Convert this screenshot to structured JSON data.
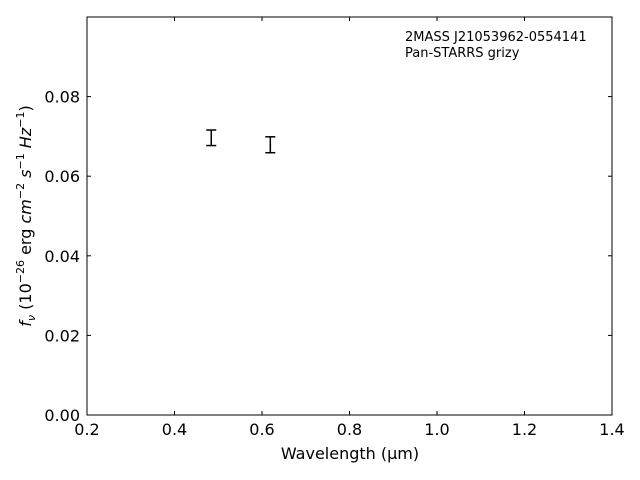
{
  "chart_data": {
    "type": "scatter",
    "annotation_lines": [
      "2MASS J21053962-0554141",
      "Pan-STARRS grizy"
    ],
    "xlabel": "Wavelength (μm)",
    "ylabel_parts": {
      "f": "f",
      "sub": "ν",
      "open": " (10",
      "exp1": "−26",
      "mid": " erg ",
      "cm": "cm",
      "exp2": "−2",
      "s": " s",
      "exp3": "−1",
      "hz": " Hz",
      "exp4": "−1",
      "close": ")"
    },
    "xlim": [
      0.2,
      1.4
    ],
    "ylim": [
      0.0,
      0.1
    ],
    "xticks": [
      0.2,
      0.4,
      0.6,
      0.8,
      1.0,
      1.2,
      1.4
    ],
    "xtick_labels": [
      "0.2",
      "0.4",
      "0.6",
      "0.8",
      "1.0",
      "1.2",
      "1.4"
    ],
    "yticks": [
      0.0,
      0.02,
      0.04,
      0.06,
      0.08
    ],
    "ytick_labels": [
      "0.00",
      "0.02",
      "0.04",
      "0.06",
      "0.08"
    ],
    "grid": false,
    "points": [
      {
        "x": 0.484,
        "y": 0.0696,
        "yerr_low": 0.0677,
        "yerr_high": 0.0716
      },
      {
        "x": 0.619,
        "y": 0.0678,
        "yerr_low": 0.0659,
        "yerr_high": 0.0699
      }
    ]
  }
}
